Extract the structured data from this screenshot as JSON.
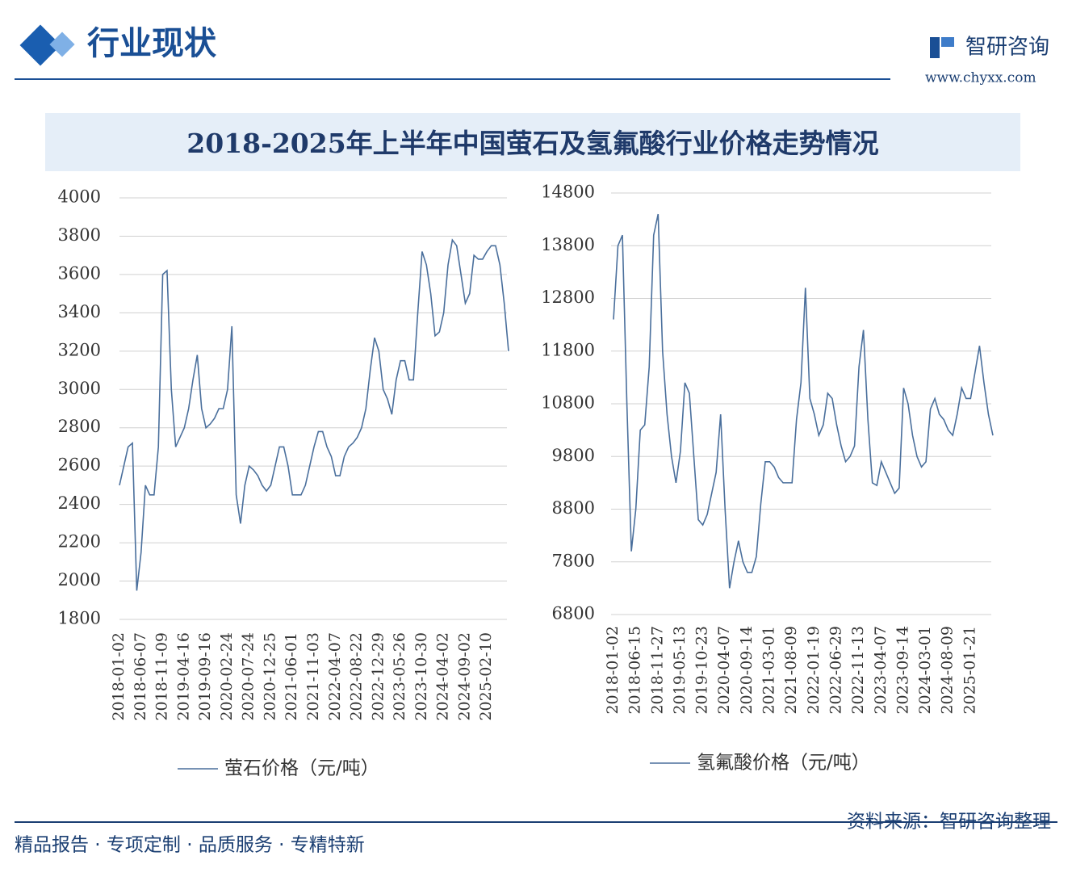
{
  "header": {
    "title": "行业现状",
    "logo": "智研咨询",
    "url": "www.chyxx.com"
  },
  "banner_title": "2018-2025年上半年中国萤石及氢氟酸行业价格走势情况",
  "chart_data": [
    {
      "type": "line",
      "categories": [
        "2018-01-02",
        null,
        null,
        null,
        null,
        "2018-06-07",
        null,
        null,
        null,
        null,
        "2018-11-09",
        null,
        null,
        null,
        null,
        "2019-04-16",
        null,
        null,
        null,
        null,
        "2019-09-16",
        null,
        null,
        null,
        null,
        "2020-02-24",
        null,
        null,
        null,
        null,
        "2020-07-24",
        null,
        null,
        null,
        null,
        "2020-12-25",
        null,
        null,
        null,
        null,
        "2021-06-01",
        null,
        null,
        null,
        null,
        "2021-11-03",
        null,
        null,
        null,
        null,
        "2022-04-07",
        null,
        null,
        null,
        null,
        "2022-08-22",
        null,
        null,
        null,
        null,
        "2022-12-29",
        null,
        null,
        null,
        null,
        "2023-05-26",
        null,
        null,
        null,
        null,
        "2023-10-30",
        null,
        null,
        null,
        null,
        "2024-04-02",
        null,
        null,
        null,
        null,
        "2024-09-02",
        null,
        null,
        null,
        null,
        "2025-02-10",
        null,
        null,
        null,
        null,
        null
      ],
      "series": [
        {
          "name": "萤石价格（元/吨）",
          "color": "#4a6f9c",
          "values": [
            2500,
            2600,
            2700,
            2720,
            1950,
            2150,
            2500,
            2450,
            2450,
            2700,
            3600,
            3620,
            3000,
            2700,
            2750,
            2800,
            2900,
            3050,
            3180,
            2900,
            2800,
            2820,
            2850,
            2900,
            2900,
            3000,
            3330,
            2450,
            2300,
            2500,
            2600,
            2580,
            2550,
            2500,
            2470,
            2500,
            2600,
            2700,
            2700,
            2600,
            2450,
            2450,
            2450,
            2500,
            2600,
            2700,
            2780,
            2780,
            2700,
            2650,
            2550,
            2550,
            2650,
            2700,
            2720,
            2750,
            2800,
            2900,
            3100,
            3270,
            3200,
            3000,
            2950,
            2870,
            3050,
            3150,
            3150,
            3050,
            3050,
            3400,
            3720,
            3650,
            3500,
            3280,
            3300,
            3400,
            3650,
            3780,
            3750,
            3600,
            3450,
            3500,
            3700,
            3680,
            3680,
            3720,
            3750,
            3750,
            3650,
            3450,
            3200
          ]
        }
      ],
      "ylim": [
        1800,
        4000
      ],
      "yticks": [
        1800,
        2000,
        2200,
        2400,
        2600,
        2800,
        3000,
        3200,
        3400,
        3600,
        3800,
        4000
      ],
      "grid": true
    },
    {
      "type": "line",
      "categories": [
        "2018-01-02",
        null,
        null,
        null,
        null,
        "2018-06-15",
        null,
        null,
        null,
        null,
        "2018-11-27",
        null,
        null,
        null,
        null,
        "2019-05-13",
        null,
        null,
        null,
        null,
        "2019-10-23",
        null,
        null,
        null,
        null,
        "2020-04-07",
        null,
        null,
        null,
        null,
        "2020-09-14",
        null,
        null,
        null,
        null,
        "2021-03-01",
        null,
        null,
        null,
        null,
        "2021-08-09",
        null,
        null,
        null,
        null,
        "2022-01-19",
        null,
        null,
        null,
        null,
        "2022-06-29",
        null,
        null,
        null,
        null,
        "2022-11-13",
        null,
        null,
        null,
        null,
        "2023-04-07",
        null,
        null,
        null,
        null,
        "2023-09-14",
        null,
        null,
        null,
        null,
        "2024-03-01",
        null,
        null,
        null,
        null,
        "2024-08-09",
        null,
        null,
        null,
        null,
        "2025-01-21",
        null,
        null,
        null,
        null,
        null
      ],
      "series": [
        {
          "name": "氢氟酸价格（元/吨）",
          "color": "#4a6f9c",
          "values": [
            12400,
            13800,
            14000,
            10800,
            8000,
            8800,
            10300,
            10400,
            11500,
            14000,
            14400,
            11800,
            10600,
            9800,
            9300,
            9900,
            11200,
            11000,
            9800,
            8600,
            8500,
            8700,
            9100,
            9500,
            10600,
            8800,
            7300,
            7800,
            8200,
            7800,
            7600,
            7600,
            7900,
            8900,
            9700,
            9700,
            9600,
            9400,
            9300,
            9300,
            9300,
            10500,
            11200,
            13000,
            10900,
            10600,
            10200,
            10400,
            11000,
            10900,
            10400,
            10000,
            9700,
            9800,
            10000,
            11500,
            12200,
            10500,
            9300,
            9250,
            9700,
            9500,
            9300,
            9100,
            9200,
            11100,
            10800,
            10200,
            9800,
            9600,
            9700,
            10700,
            10900,
            10600,
            10500,
            10300,
            10200,
            10600,
            11100,
            10900,
            10900,
            11400,
            11900,
            11200,
            10600,
            10200
          ]
        }
      ],
      "ylim": [
        6800,
        14800
      ],
      "yticks": [
        6800,
        7800,
        8800,
        9800,
        10800,
        11800,
        12800,
        13800,
        14800
      ],
      "grid": true
    }
  ],
  "footer": {
    "tagline": "精品报告 · 专项定制 · 品质服务 · 专精特新",
    "source": "资料来源：智研咨询整理"
  }
}
